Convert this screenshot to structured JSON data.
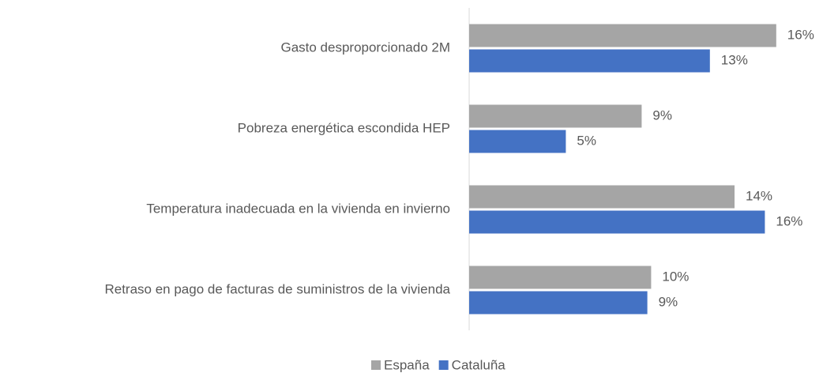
{
  "chart_data": {
    "type": "barh",
    "categories": [
      "Gasto desproporcionado 2M",
      "Pobreza energética escondida HEP",
      "Temperatura inadecuada en la vivienda en invierno",
      "Retraso en pago de facturas de suministros de la vivienda"
    ],
    "series": [
      {
        "name": "España",
        "color": "#a5a5a5",
        "values": [
          16.2,
          9.1,
          14.0,
          9.6
        ],
        "value_labels": [
          "16%",
          "9%",
          "14%",
          "10%"
        ]
      },
      {
        "name": "Cataluña",
        "color": "#4472c4",
        "values": [
          12.7,
          5.1,
          15.6,
          9.4
        ],
        "value_labels": [
          "13%",
          "5%",
          "16%",
          "9%"
        ]
      }
    ],
    "xlim": [
      0,
      18
    ],
    "legend": "bottom"
  }
}
